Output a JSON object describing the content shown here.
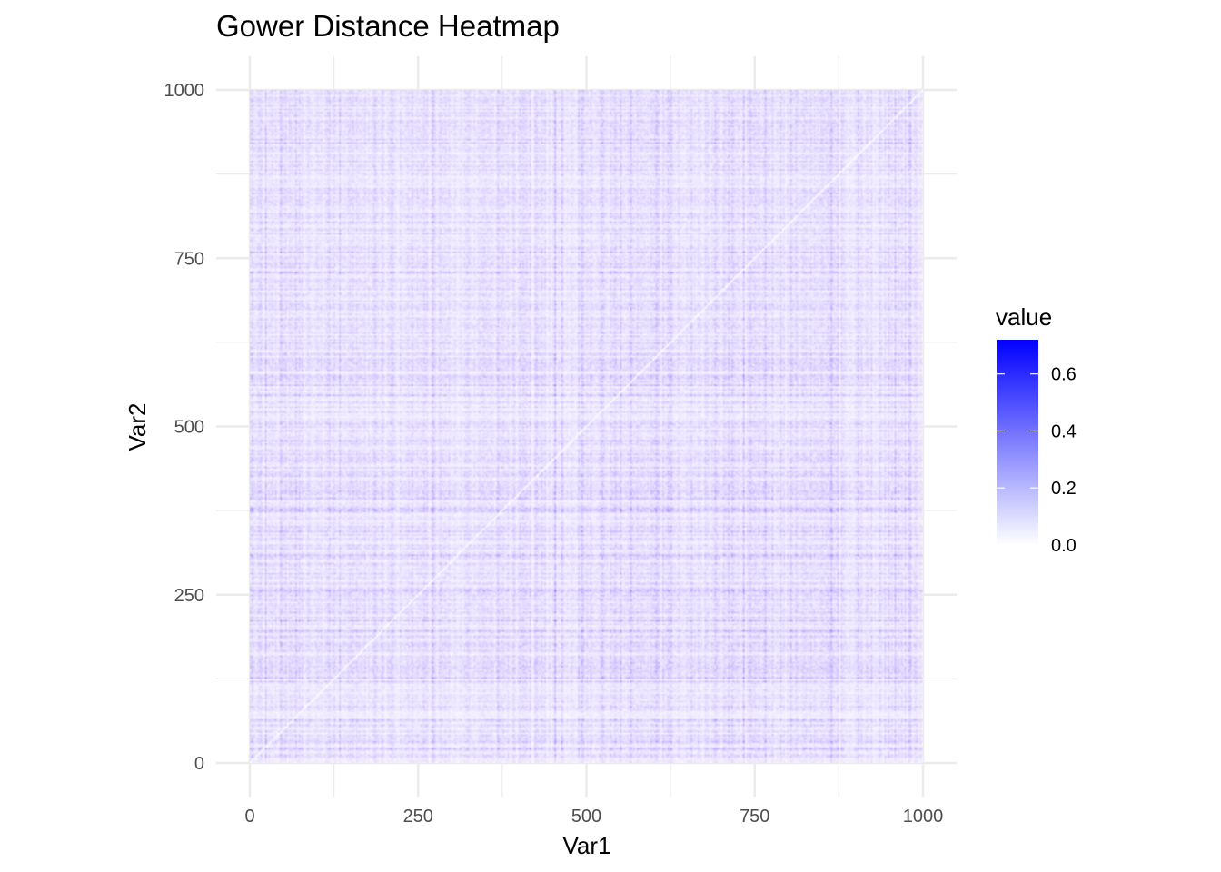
{
  "chart_data": {
    "type": "heatmap",
    "title": "Gower Distance Heatmap",
    "xlabel": "Var1",
    "ylabel": "Var2",
    "xlim": [
      0,
      1000
    ],
    "ylim": [
      0,
      1000
    ],
    "x_ticks": [
      "0",
      "250",
      "500",
      "750",
      "1000"
    ],
    "y_ticks": [
      "0",
      "250",
      "500",
      "750",
      "1000"
    ],
    "n_rows": 1000,
    "n_cols": 1000,
    "diagonal_value": 0,
    "grid": true,
    "legend": {
      "title": "value",
      "position": "right",
      "ticks": [
        "0.0",
        "0.2",
        "0.4",
        "0.6"
      ],
      "range": [
        0,
        0.72
      ],
      "low_color": "#ffffff",
      "high_color": "#0000ff"
    }
  }
}
